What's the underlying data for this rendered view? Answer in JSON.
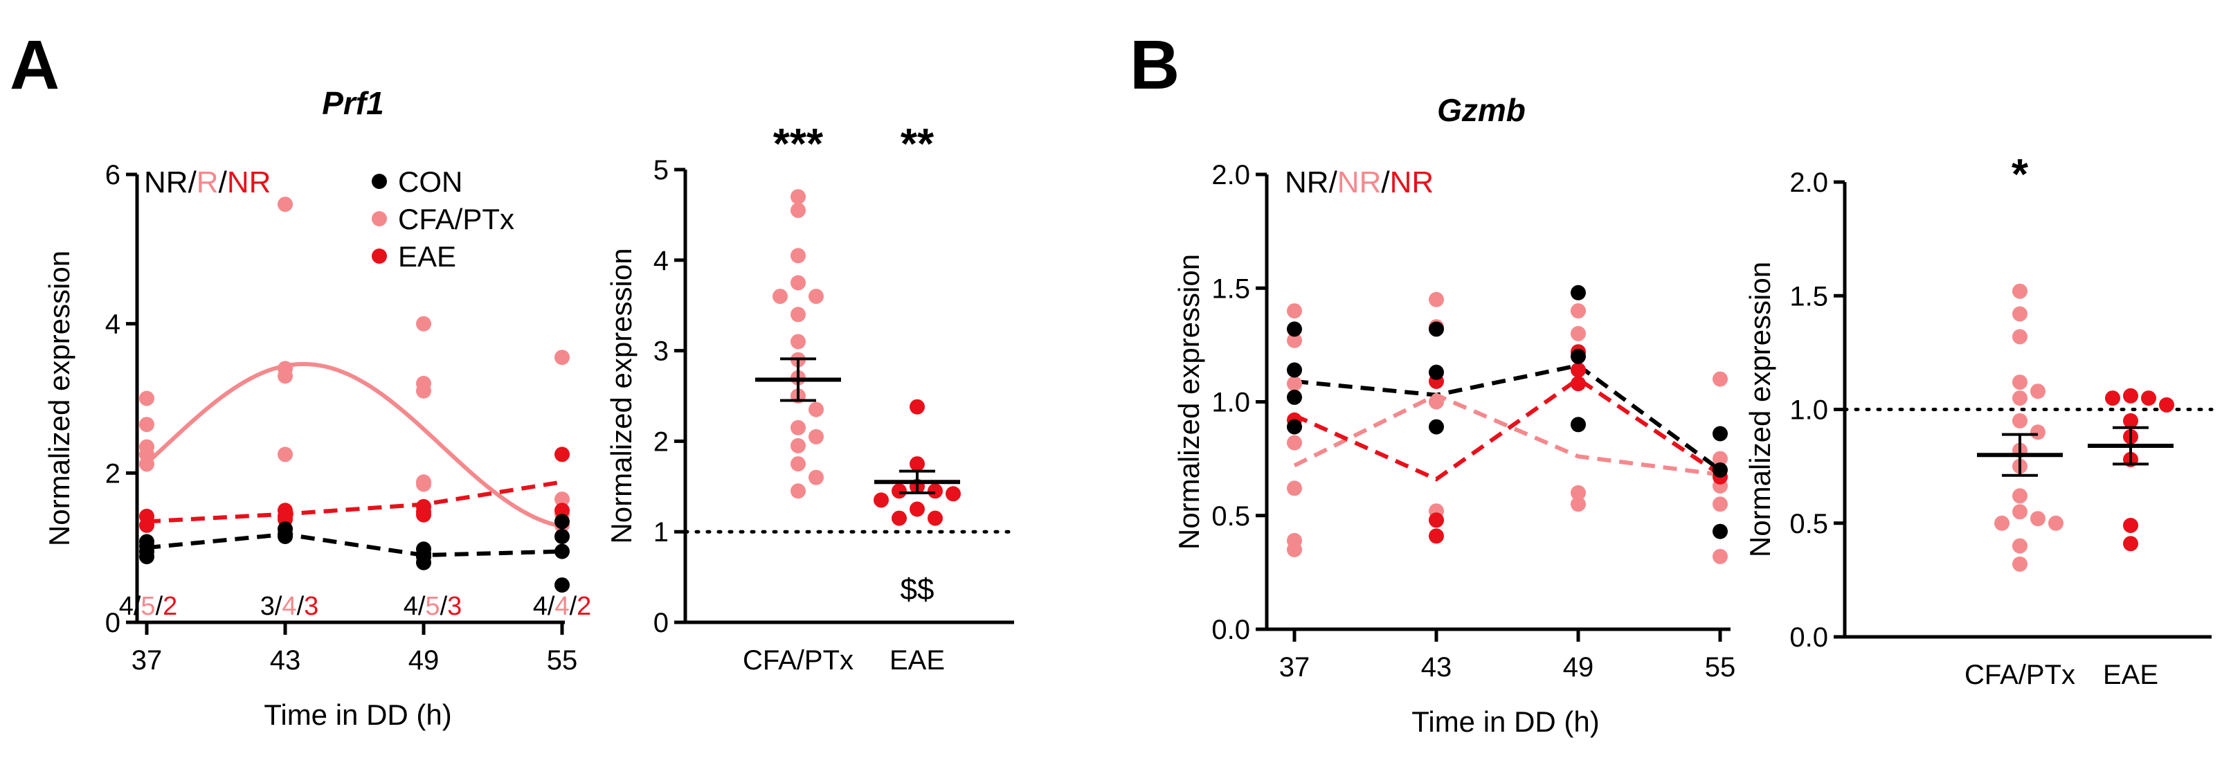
{
  "colors": {
    "con": "#000000",
    "cfa": "#f4898d",
    "eae": "#e8101a"
  },
  "panels": {
    "A": "A",
    "B": "B"
  },
  "legend": [
    {
      "key": "con",
      "label": "CON"
    },
    {
      "key": "cfa",
      "label": "CFA/PTx"
    },
    {
      "key": "eae",
      "label": "EAE"
    }
  ],
  "rhythmicity": {
    "prf1": [
      {
        "text": "NR",
        "key": "con"
      },
      {
        "text": "/",
        "key": "con"
      },
      {
        "text": "R",
        "key": "cfa"
      },
      {
        "text": "/",
        "key": "con"
      },
      {
        "text": "NR",
        "key": "eae"
      }
    ],
    "gzmb": [
      {
        "text": "NR",
        "key": "con"
      },
      {
        "text": "/",
        "key": "con"
      },
      {
        "text": "NR",
        "key": "cfa"
      },
      {
        "text": "/",
        "key": "con"
      },
      {
        "text": "NR",
        "key": "eae"
      }
    ]
  },
  "sample_sizes": [
    [
      {
        "text": "4",
        "key": "con"
      },
      {
        "text": "/",
        "key": "con"
      },
      {
        "text": "5",
        "key": "cfa"
      },
      {
        "text": "/",
        "key": "con"
      },
      {
        "text": "2",
        "key": "eae"
      }
    ],
    [
      {
        "text": "3",
        "key": "con"
      },
      {
        "text": "/",
        "key": "con"
      },
      {
        "text": "4",
        "key": "cfa"
      },
      {
        "text": "/",
        "key": "con"
      },
      {
        "text": "3",
        "key": "eae"
      }
    ],
    [
      {
        "text": "4",
        "key": "con"
      },
      {
        "text": "/",
        "key": "con"
      },
      {
        "text": "5",
        "key": "cfa"
      },
      {
        "text": "/",
        "key": "con"
      },
      {
        "text": "3",
        "key": "eae"
      }
    ],
    [
      {
        "text": "4",
        "key": "con"
      },
      {
        "text": "/",
        "key": "con"
      },
      {
        "text": "4",
        "key": "cfa"
      },
      {
        "text": "/",
        "key": "con"
      },
      {
        "text": "2",
        "key": "eae"
      }
    ]
  ],
  "chart_data": [
    {
      "id": "A1",
      "type": "scatter",
      "title": "Prf1",
      "xlabel": "Time in DD (h)",
      "ylabel": "Normalized expression",
      "x": [
        37,
        43,
        49,
        55
      ],
      "xlim": [
        36,
        56
      ],
      "ylim": [
        0,
        6
      ],
      "yticks": [
        0,
        2,
        4,
        6
      ],
      "ytick_labels": [
        "0",
        "2",
        "4",
        "6"
      ],
      "xtick_labels": [
        "37",
        "43",
        "49",
        "55"
      ],
      "series": [
        {
          "name": "CON",
          "key": "con",
          "points": [
            [
              37,
              1.08
            ],
            [
              37,
              1.02
            ],
            [
              37,
              0.95
            ],
            [
              37,
              0.88
            ],
            [
              43,
              1.25
            ],
            [
              43,
              1.18
            ],
            [
              43,
              1.15
            ],
            [
              49,
              0.98
            ],
            [
              49,
              0.92
            ],
            [
              49,
              0.88
            ],
            [
              49,
              0.8
            ],
            [
              55,
              1.35
            ],
            [
              55,
              1.15
            ],
            [
              55,
              0.95
            ],
            [
              55,
              0.5
            ]
          ],
          "fit": {
            "style": "dashed",
            "points": [
              [
                37,
                1.0
              ],
              [
                43,
                1.18
              ],
              [
                49,
                0.9
              ],
              [
                55,
                0.95
              ]
            ]
          }
        },
        {
          "name": "CFA/PTx",
          "key": "cfa",
          "points": [
            [
              37,
              3.0
            ],
            [
              37,
              2.65
            ],
            [
              37,
              2.35
            ],
            [
              37,
              2.25
            ],
            [
              37,
              2.12
            ],
            [
              43,
              5.6
            ],
            [
              43,
              3.4
            ],
            [
              43,
              3.3
            ],
            [
              43,
              2.25
            ],
            [
              49,
              4.0
            ],
            [
              49,
              3.2
            ],
            [
              49,
              3.1
            ],
            [
              49,
              1.88
            ],
            [
              49,
              1.85
            ],
            [
              55,
              3.55
            ],
            [
              55,
              1.65
            ],
            [
              55,
              1.45
            ],
            [
              55,
              1.3
            ]
          ],
          "fit": {
            "style": "solid",
            "cosinor": {
              "mesor": 2.36,
              "amplitude": 1.1,
              "peak": 43.8,
              "period": 24
            }
          }
        },
        {
          "name": "EAE",
          "key": "eae",
          "points": [
            [
              37,
              1.42
            ],
            [
              37,
              1.3
            ],
            [
              43,
              1.5
            ],
            [
              43,
              1.42
            ],
            [
              43,
              1.38
            ],
            [
              49,
              1.55
            ],
            [
              49,
              1.48
            ],
            [
              49,
              1.44
            ],
            [
              55,
              2.25
            ],
            [
              55,
              1.5
            ]
          ],
          "fit": {
            "style": "dashed",
            "points": [
              [
                37,
                1.35
              ],
              [
                43,
                1.45
              ],
              [
                49,
                1.58
              ],
              [
                55,
                1.88
              ]
            ]
          }
        }
      ]
    },
    {
      "id": "A2",
      "type": "scatter",
      "ylabel": "Normalized expression",
      "categories": [
        "CFA/PTx",
        "EAE"
      ],
      "ylim": [
        0,
        5
      ],
      "yticks": [
        0,
        1,
        2,
        3,
        4,
        5
      ],
      "ytick_labels": [
        "0",
        "1",
        "2",
        "3",
        "4",
        "5"
      ],
      "reference_line": 1,
      "significance": [
        "***",
        "**"
      ],
      "annotation": "$$",
      "groups": [
        {
          "name": "CFA/PTx",
          "key": "cfa",
          "mean": 2.68,
          "sem": 0.23,
          "values": [
            4.7,
            4.55,
            4.05,
            3.75,
            3.6,
            3.6,
            3.4,
            3.1,
            2.9,
            2.7,
            2.5,
            2.35,
            2.15,
            2.05,
            1.95,
            1.75,
            1.6,
            1.45
          ]
        },
        {
          "name": "EAE",
          "key": "eae",
          "mean": 1.55,
          "sem": 0.12,
          "values": [
            2.38,
            1.75,
            1.5,
            1.45,
            1.45,
            1.42,
            1.35,
            1.25,
            1.15,
            1.15
          ]
        }
      ]
    },
    {
      "id": "B1",
      "type": "scatter",
      "title": "Gzmb",
      "xlabel": "Time in DD (h)",
      "ylabel": "Normalized expression",
      "x": [
        37,
        43,
        49,
        55
      ],
      "xlim": [
        36,
        56
      ],
      "ylim": [
        0,
        2
      ],
      "yticks": [
        0,
        0.5,
        1.0,
        1.5,
        2.0
      ],
      "ytick_labels": [
        "0.0",
        "0.5",
        "1.0",
        "1.5",
        "2.0"
      ],
      "xtick_labels": [
        "37",
        "43",
        "49",
        "55"
      ],
      "series": [
        {
          "name": "CON",
          "key": "con",
          "points": [
            [
              37,
              1.32
            ],
            [
              37,
              1.14
            ],
            [
              37,
              1.02
            ],
            [
              37,
              0.89
            ],
            [
              43,
              1.32
            ],
            [
              43,
              1.13
            ],
            [
              43,
              0.89
            ],
            [
              49,
              1.48
            ],
            [
              49,
              1.2
            ],
            [
              49,
              0.9
            ],
            [
              55,
              0.86
            ],
            [
              55,
              0.7
            ],
            [
              55,
              0.43
            ]
          ],
          "fit": {
            "style": "dashed",
            "points": [
              [
                37,
                1.09
              ],
              [
                43,
                1.03
              ],
              [
                49,
                1.16
              ],
              [
                55,
                0.7
              ]
            ]
          }
        },
        {
          "name": "CFA/PTx",
          "key": "cfa",
          "points": [
            [
              37,
              1.4
            ],
            [
              37,
              1.27
            ],
            [
              37,
              1.08
            ],
            [
              37,
              0.82
            ],
            [
              37,
              0.62
            ],
            [
              37,
              0.39
            ],
            [
              37,
              0.35
            ],
            [
              43,
              1.45
            ],
            [
              43,
              1.33
            ],
            [
              43,
              1.0
            ],
            [
              43,
              0.52
            ],
            [
              43,
              0.48
            ],
            [
              49,
              1.4
            ],
            [
              49,
              1.3
            ],
            [
              49,
              0.9
            ],
            [
              49,
              0.6
            ],
            [
              49,
              0.55
            ],
            [
              55,
              1.1
            ],
            [
              55,
              0.75
            ],
            [
              55,
              0.63
            ],
            [
              55,
              0.55
            ],
            [
              55,
              0.32
            ]
          ],
          "fit": {
            "style": "dashed",
            "points": [
              [
                37,
                0.72
              ],
              [
                43,
                1.03
              ],
              [
                49,
                0.76
              ],
              [
                55,
                0.68
              ]
            ]
          }
        },
        {
          "name": "EAE",
          "key": "eae",
          "points": [
            [
              37,
              0.92
            ],
            [
              43,
              1.09
            ],
            [
              43,
              0.48
            ],
            [
              43,
              0.41
            ],
            [
              49,
              1.22
            ],
            [
              49,
              1.14
            ],
            [
              49,
              1.08
            ],
            [
              55,
              0.67
            ]
          ],
          "fit": {
            "style": "dashed",
            "points": [
              [
                37,
                0.94
              ],
              [
                43,
                0.66
              ],
              [
                49,
                1.1
              ],
              [
                55,
                0.68
              ]
            ]
          }
        }
      ]
    },
    {
      "id": "B2",
      "type": "scatter",
      "ylabel": "Normalized expression",
      "categories": [
        "CFA/PTx",
        "EAE"
      ],
      "ylim": [
        0,
        2
      ],
      "yticks": [
        0,
        0.5,
        1.0,
        1.5,
        2.0
      ],
      "ytick_labels": [
        "0.0",
        "0.5",
        "1.0",
        "1.5",
        "2.0"
      ],
      "reference_line": 1,
      "significance": [
        "*",
        ""
      ],
      "groups": [
        {
          "name": "CFA/PTx",
          "key": "cfa",
          "mean": 0.8,
          "sem": 0.09,
          "values": [
            1.52,
            1.42,
            1.32,
            1.12,
            1.08,
            1.05,
            0.95,
            0.9,
            0.82,
            0.75,
            0.62,
            0.55,
            0.52,
            0.5,
            0.5,
            0.4,
            0.32
          ]
        },
        {
          "name": "EAE",
          "key": "eae",
          "mean": 0.84,
          "sem": 0.08,
          "values": [
            1.06,
            1.05,
            1.05,
            1.02,
            0.95,
            0.88,
            0.78,
            0.49,
            0.41
          ]
        }
      ]
    }
  ]
}
